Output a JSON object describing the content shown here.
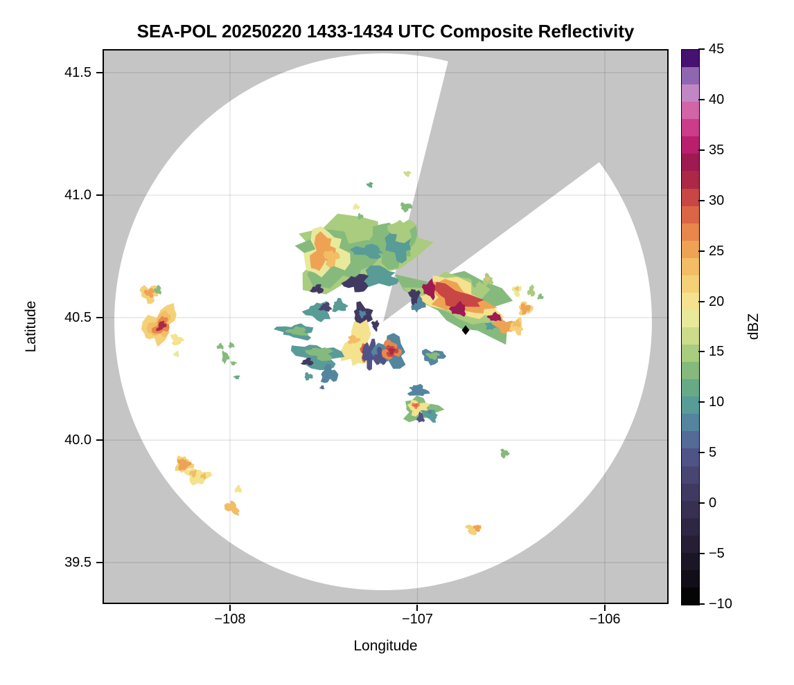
{
  "title": "SEA-POL 20250220 1433-1434 UTC Composite Reflectivity",
  "axes": {
    "xlabel": "Longitude",
    "ylabel": "Latitude",
    "xticks": [
      {
        "value": -108,
        "label": "−108"
      },
      {
        "value": -107,
        "label": "−107"
      },
      {
        "value": -106,
        "label": "−106"
      }
    ],
    "yticks": [
      {
        "value": 41.5,
        "label": "41.5"
      },
      {
        "value": 41.0,
        "label": "41.0"
      },
      {
        "value": 40.5,
        "label": "40.5"
      },
      {
        "value": 40.0,
        "label": "40.0"
      },
      {
        "value": 39.5,
        "label": "39.5"
      }
    ]
  },
  "colorbar": {
    "label": "dBZ",
    "min": -10,
    "max": 45,
    "tick_values": [
      45,
      40,
      35,
      30,
      25,
      20,
      15,
      10,
      5,
      0,
      -5,
      -10
    ],
    "tick_labels": [
      "45",
      "40",
      "35",
      "30",
      "25",
      "20",
      "15",
      "10",
      "5",
      "0",
      "−5",
      "−10"
    ],
    "stops": [
      {
        "v": -10.0,
        "c": "#050505"
      },
      {
        "v": -8.28,
        "c": "#120e18"
      },
      {
        "v": -6.56,
        "c": "#1b1626"
      },
      {
        "v": -4.84,
        "c": "#251e34"
      },
      {
        "v": -3.13,
        "c": "#2e2743"
      },
      {
        "v": -1.41,
        "c": "#373052"
      },
      {
        "v": 0.31,
        "c": "#403a62"
      },
      {
        "v": 2.03,
        "c": "#494573"
      },
      {
        "v": 3.75,
        "c": "#505386"
      },
      {
        "v": 5.47,
        "c": "#536b97"
      },
      {
        "v": 7.19,
        "c": "#53859f"
      },
      {
        "v": 8.91,
        "c": "#589b97"
      },
      {
        "v": 10.63,
        "c": "#68aa88"
      },
      {
        "v": 12.34,
        "c": "#85ba7c"
      },
      {
        "v": 14.06,
        "c": "#a9cc7e"
      },
      {
        "v": 15.78,
        "c": "#ccdc8a"
      },
      {
        "v": 17.5,
        "c": "#e9e99c"
      },
      {
        "v": 19.22,
        "c": "#f4e28e"
      },
      {
        "v": 20.94,
        "c": "#f4d179"
      },
      {
        "v": 22.66,
        "c": "#f2bd64"
      },
      {
        "v": 24.38,
        "c": "#eea354"
      },
      {
        "v": 26.09,
        "c": "#e7874b"
      },
      {
        "v": 27.81,
        "c": "#db6645"
      },
      {
        "v": 29.53,
        "c": "#c84744"
      },
      {
        "v": 31.25,
        "c": "#ad2847"
      },
      {
        "v": 32.97,
        "c": "#9e1a51"
      },
      {
        "v": 34.69,
        "c": "#b81f6d"
      },
      {
        "v": 36.41,
        "c": "#cb3d8a"
      },
      {
        "v": 38.13,
        "c": "#d264a8"
      },
      {
        "v": 39.84,
        "c": "#c187c4"
      },
      {
        "v": 41.56,
        "c": "#9166b1"
      },
      {
        "v": 43.28,
        "c": "#471170"
      }
    ]
  },
  "chart_data": {
    "type": "heatmap",
    "title": "SEA-POL 20250220 1433-1434 UTC Composite Reflectivity",
    "xlabel": "Longitude",
    "ylabel": "Latitude",
    "value_label": "dBZ",
    "xlim": [
      -108.68,
      -105.66
    ],
    "ylim": [
      39.331,
      41.596
    ],
    "grid": true,
    "no_data_color": "#c5c5c5",
    "coverage_color": "#ffffff",
    "radar": {
      "lon": -107.183,
      "lat": 40.483,
      "range_lon_deg": 1.434,
      "range_lat_deg": 1.096
    },
    "blocked_sector_azimuth_deg": [
      14,
      53.5
    ],
    "marker": {
      "shape": "diamond",
      "lon": -106.743,
      "lat": 40.449,
      "color": "#000000"
    },
    "patch_format": [
      "lon_center",
      "lat_center",
      "rx_deg",
      "ry_deg",
      "rotation_deg",
      "dbz"
    ],
    "echo_patches": [
      [
        -107.331,
        40.763,
        0.303,
        0.141,
        -8,
        15
      ],
      [
        -107.423,
        40.749,
        0.203,
        0.107,
        0,
        12.5
      ],
      [
        -107.128,
        40.805,
        0.118,
        0.085,
        0,
        12.5
      ],
      [
        -107.098,
        40.8,
        0.067,
        0.062,
        0,
        9
      ],
      [
        -107.264,
        40.771,
        0.081,
        0.025,
        5,
        9
      ],
      [
        -107.22,
        40.664,
        0.111,
        0.04,
        -5,
        9
      ],
      [
        -107.49,
        40.763,
        0.111,
        0.09,
        0,
        17.8
      ],
      [
        -107.508,
        40.768,
        0.059,
        0.073,
        15,
        25
      ],
      [
        -107.46,
        40.743,
        0.037,
        0.034,
        0,
        24
      ],
      [
        -107.083,
        40.856,
        0.063,
        0.045,
        0,
        15
      ],
      [
        -107.323,
        40.641,
        0.063,
        0.034,
        0,
        2
      ],
      [
        -107.534,
        40.616,
        0.033,
        0.017,
        0,
        1
      ],
      [
        -107.327,
        40.952,
        0.018,
        0.011,
        0,
        18
      ],
      [
        -107.305,
        40.913,
        0.015,
        0.011,
        0,
        12.5
      ],
      [
        -107.061,
        40.952,
        0.03,
        0.017,
        0,
        13
      ],
      [
        -107.054,
        41.088,
        0.018,
        0.011,
        0,
        17
      ],
      [
        -107.253,
        41.042,
        0.015,
        0.011,
        0,
        11
      ],
      [
        -106.758,
        40.565,
        0.277,
        0.107,
        22,
        12.5
      ],
      [
        -106.776,
        40.574,
        0.229,
        0.085,
        22,
        15
      ],
      [
        -106.787,
        40.579,
        0.192,
        0.068,
        22,
        19.5
      ],
      [
        -106.787,
        40.579,
        0.163,
        0.051,
        22,
        26
      ],
      [
        -106.795,
        40.585,
        0.133,
        0.034,
        22,
        30
      ],
      [
        -106.935,
        40.616,
        0.033,
        0.034,
        -10,
        33.5
      ],
      [
        -106.78,
        40.534,
        0.041,
        0.025,
        0,
        33.5
      ],
      [
        -106.584,
        40.5,
        0.037,
        0.017,
        15,
        33.5
      ],
      [
        -106.998,
        40.559,
        0.033,
        0.034,
        0,
        8
      ],
      [
        -106.606,
        40.466,
        0.033,
        0.014,
        0,
        9
      ],
      [
        -107.017,
        40.588,
        0.026,
        0.031,
        0,
        2
      ],
      [
        -106.536,
        40.466,
        0.052,
        0.025,
        10,
        25
      ],
      [
        -106.469,
        40.463,
        0.033,
        0.031,
        0,
        21
      ],
      [
        -106.469,
        40.475,
        0.022,
        0.014,
        0,
        24
      ],
      [
        -106.625,
        40.653,
        0.026,
        0.023,
        0,
        15
      ],
      [
        -106.625,
        40.658,
        0.011,
        0.008,
        0,
        23
      ],
      [
        -106.695,
        40.647,
        0.018,
        0.02,
        0,
        12.5
      ],
      [
        -106.469,
        40.61,
        0.022,
        0.023,
        0,
        18
      ],
      [
        -106.469,
        40.618,
        0.011,
        0.008,
        0,
        24
      ],
      [
        -106.392,
        40.608,
        0.018,
        0.023,
        0,
        15
      ],
      [
        -106.344,
        40.585,
        0.015,
        0.011,
        0,
        12.5
      ],
      [
        -106.425,
        40.537,
        0.037,
        0.025,
        0,
        21
      ],
      [
        -106.425,
        40.537,
        0.026,
        0.02,
        0,
        25.5
      ],
      [
        -108.429,
        40.599,
        0.048,
        0.034,
        0,
        21.5
      ],
      [
        -108.429,
        40.602,
        0.026,
        0.017,
        0,
        25.5
      ],
      [
        -108.384,
        40.613,
        0.018,
        0.017,
        0,
        13
      ],
      [
        -108.377,
        40.472,
        0.067,
        0.085,
        40,
        21.5
      ],
      [
        -108.373,
        40.469,
        0.048,
        0.056,
        40,
        23.5
      ],
      [
        -108.366,
        40.466,
        0.033,
        0.04,
        40,
        26.5
      ],
      [
        -108.366,
        40.466,
        0.018,
        0.023,
        40,
        31.5
      ],
      [
        -108.285,
        40.41,
        0.033,
        0.02,
        40,
        19.5
      ],
      [
        -108.285,
        40.351,
        0.015,
        0.011,
        0,
        18
      ],
      [
        -108.052,
        40.382,
        0.018,
        0.011,
        0,
        12.5
      ],
      [
        -107.993,
        40.387,
        0.015,
        0.011,
        0,
        13
      ],
      [
        -108.026,
        40.339,
        0.018,
        0.023,
        0,
        12.5
      ],
      [
        -107.982,
        40.314,
        0.015,
        0.008,
        0,
        13
      ],
      [
        -107.963,
        40.257,
        0.015,
        0.008,
        0,
        11
      ],
      [
        -107.527,
        40.525,
        0.063,
        0.037,
        0,
        9
      ],
      [
        -107.49,
        40.542,
        0.03,
        0.017,
        0,
        3
      ],
      [
        -107.416,
        40.548,
        0.037,
        0.025,
        0,
        9
      ],
      [
        -107.294,
        40.511,
        0.048,
        0.045,
        0,
        1
      ],
      [
        -107.294,
        40.515,
        0.018,
        0.014,
        0,
        8
      ],
      [
        -107.224,
        40.469,
        0.018,
        0.02,
        0,
        2
      ],
      [
        -107.645,
        40.444,
        0.092,
        0.028,
        5,
        9
      ],
      [
        -107.638,
        40.444,
        0.052,
        0.017,
        5,
        12.5
      ],
      [
        -107.312,
        40.387,
        0.078,
        0.09,
        10,
        19.5
      ],
      [
        -107.342,
        40.41,
        0.03,
        0.017,
        0,
        24
      ],
      [
        -107.275,
        40.359,
        0.03,
        0.034,
        0,
        29
      ],
      [
        -107.275,
        40.359,
        0.018,
        0.02,
        0,
        31.5
      ],
      [
        -107.257,
        40.353,
        0.033,
        0.056,
        5,
        4
      ],
      [
        -107.146,
        40.359,
        0.085,
        0.062,
        0,
        8
      ],
      [
        -107.201,
        40.339,
        0.03,
        0.034,
        0,
        5
      ],
      [
        -107.142,
        40.367,
        0.048,
        0.037,
        0,
        26.5
      ],
      [
        -107.138,
        40.364,
        0.03,
        0.023,
        0,
        30
      ],
      [
        -107.138,
        40.364,
        0.015,
        0.014,
        0,
        32.5
      ],
      [
        -107.531,
        40.342,
        0.122,
        0.048,
        12,
        9
      ],
      [
        -107.516,
        40.353,
        0.067,
        0.025,
        12,
        13
      ],
      [
        -107.586,
        40.319,
        0.03,
        0.014,
        0,
        2
      ],
      [
        -107.471,
        40.268,
        0.044,
        0.034,
        0,
        8
      ],
      [
        -107.582,
        40.26,
        0.022,
        0.014,
        0,
        9
      ],
      [
        -106.917,
        40.342,
        0.059,
        0.028,
        0,
        8
      ],
      [
        -106.917,
        40.345,
        0.033,
        0.014,
        0,
        12.5
      ],
      [
        -107.009,
        40.212,
        0.026,
        0.011,
        0,
        8
      ],
      [
        -107.508,
        40.215,
        0.011,
        0.008,
        0,
        7
      ],
      [
        -106.995,
        40.201,
        0.048,
        0.023,
        0,
        8
      ],
      [
        -106.983,
        40.125,
        0.092,
        0.045,
        0,
        13
      ],
      [
        -106.998,
        40.133,
        0.052,
        0.028,
        0,
        19.5
      ],
      [
        -107.009,
        40.142,
        0.022,
        0.011,
        0,
        26.5
      ],
      [
        -107.009,
        40.142,
        0.011,
        0.006,
        0,
        29
      ],
      [
        -106.932,
        40.102,
        0.044,
        0.02,
        25,
        9
      ],
      [
        -106.983,
        40.091,
        0.018,
        0.02,
        0,
        5
      ],
      [
        -108.248,
        39.901,
        0.044,
        0.031,
        0,
        21
      ],
      [
        -108.248,
        39.901,
        0.033,
        0.023,
        0,
        25
      ],
      [
        -108.174,
        39.853,
        0.063,
        0.031,
        10,
        19.5
      ],
      [
        -108.196,
        39.864,
        0.018,
        0.014,
        0,
        23
      ],
      [
        -108.141,
        39.853,
        0.015,
        0.011,
        0,
        23
      ],
      [
        -107.956,
        39.799,
        0.018,
        0.014,
        0,
        19.5
      ],
      [
        -107.989,
        39.723,
        0.044,
        0.02,
        35,
        24
      ],
      [
        -106.536,
        39.946,
        0.022,
        0.017,
        0,
        14
      ],
      [
        -106.702,
        39.636,
        0.037,
        0.02,
        0,
        21.5
      ],
      [
        -106.68,
        39.641,
        0.018,
        0.014,
        0,
        25
      ],
      [
        -106.935,
        40.116,
        0.011,
        0.008,
        0,
        8
      ]
    ]
  }
}
